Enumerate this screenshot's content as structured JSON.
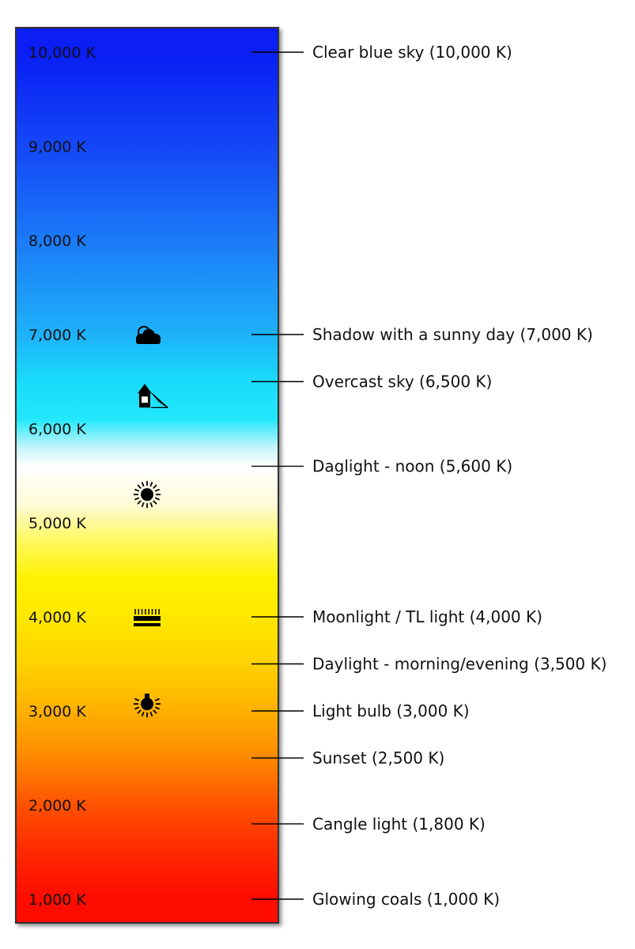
{
  "scale": {
    "unit": "K",
    "min": 1000,
    "max": 10000,
    "gradient": [
      {
        "kelvin": 10000,
        "color": "#0a1ef5"
      },
      {
        "kelvin": 9000,
        "color": "#1448f7"
      },
      {
        "kelvin": 8000,
        "color": "#1b7bf8"
      },
      {
        "kelvin": 7000,
        "color": "#1eb2f9"
      },
      {
        "kelvin": 6500,
        "color": "#19dcfb"
      },
      {
        "kelvin": 6100,
        "color": "#22e8fb"
      },
      {
        "kelvin": 5800,
        "color": "#c4f4fb"
      },
      {
        "kelvin": 5600,
        "color": "#ffffff"
      },
      {
        "kelvin": 5200,
        "color": "#fffbd9"
      },
      {
        "kelvin": 4800,
        "color": "#fff95c"
      },
      {
        "kelvin": 4400,
        "color": "#fff200"
      },
      {
        "kelvin": 4000,
        "color": "#ffe800"
      },
      {
        "kelvin": 3500,
        "color": "#ffd200"
      },
      {
        "kelvin": 3000,
        "color": "#ffb100"
      },
      {
        "kelvin": 2500,
        "color": "#ff8a00"
      },
      {
        "kelvin": 2000,
        "color": "#ff5300"
      },
      {
        "kelvin": 1500,
        "color": "#ff2a00"
      },
      {
        "kelvin": 1000,
        "color": "#ff0c00"
      }
    ],
    "ticks": [
      {
        "kelvin": 10000,
        "label": "10,000 K"
      },
      {
        "kelvin": 9000,
        "label": "9,000 K"
      },
      {
        "kelvin": 8000,
        "label": "8,000 K"
      },
      {
        "kelvin": 7000,
        "label": "7,000 K"
      },
      {
        "kelvin": 6000,
        "label": "6,000 K"
      },
      {
        "kelvin": 5000,
        "label": "5,000 K"
      },
      {
        "kelvin": 4000,
        "label": "4,000 K"
      },
      {
        "kelvin": 3000,
        "label": "3,000 K"
      },
      {
        "kelvin": 2000,
        "label": "2,000 K"
      },
      {
        "kelvin": 1000,
        "label": "1,000 K"
      }
    ]
  },
  "light_sources": [
    {
      "kelvin": 10000,
      "label": "Clear blue sky (10,000 K)"
    },
    {
      "kelvin": 7000,
      "label": "Shadow with a sunny day (7,000 K)"
    },
    {
      "kelvin": 6500,
      "label": "Overcast sky (6,500 K)"
    },
    {
      "kelvin": 5600,
      "label": "Daglight - noon (5,600 K)"
    },
    {
      "kelvin": 4000,
      "label": "Moonlight / TL light (4,000 K)"
    },
    {
      "kelvin": 3500,
      "label": "Daylight - morning/evening (3,500 K)"
    },
    {
      "kelvin": 3000,
      "label": "Light bulb (3,000 K)"
    },
    {
      "kelvin": 2500,
      "label": "Sunset (2,500 K)"
    },
    {
      "kelvin": 1800,
      "label": "Cangle light (1,800 K)"
    },
    {
      "kelvin": 1000,
      "label": "Glowing coals (1,000 K)"
    }
  ],
  "icons": [
    {
      "name": "cloud-sun-icon",
      "kelvin": 7000
    },
    {
      "name": "house-shade-icon",
      "kelvin": 6350
    },
    {
      "name": "sun-icon",
      "kelvin": 5300
    },
    {
      "name": "fluorescent-light-icon",
      "kelvin": 4000
    },
    {
      "name": "light-bulb-icon",
      "kelvin": 3100
    }
  ]
}
